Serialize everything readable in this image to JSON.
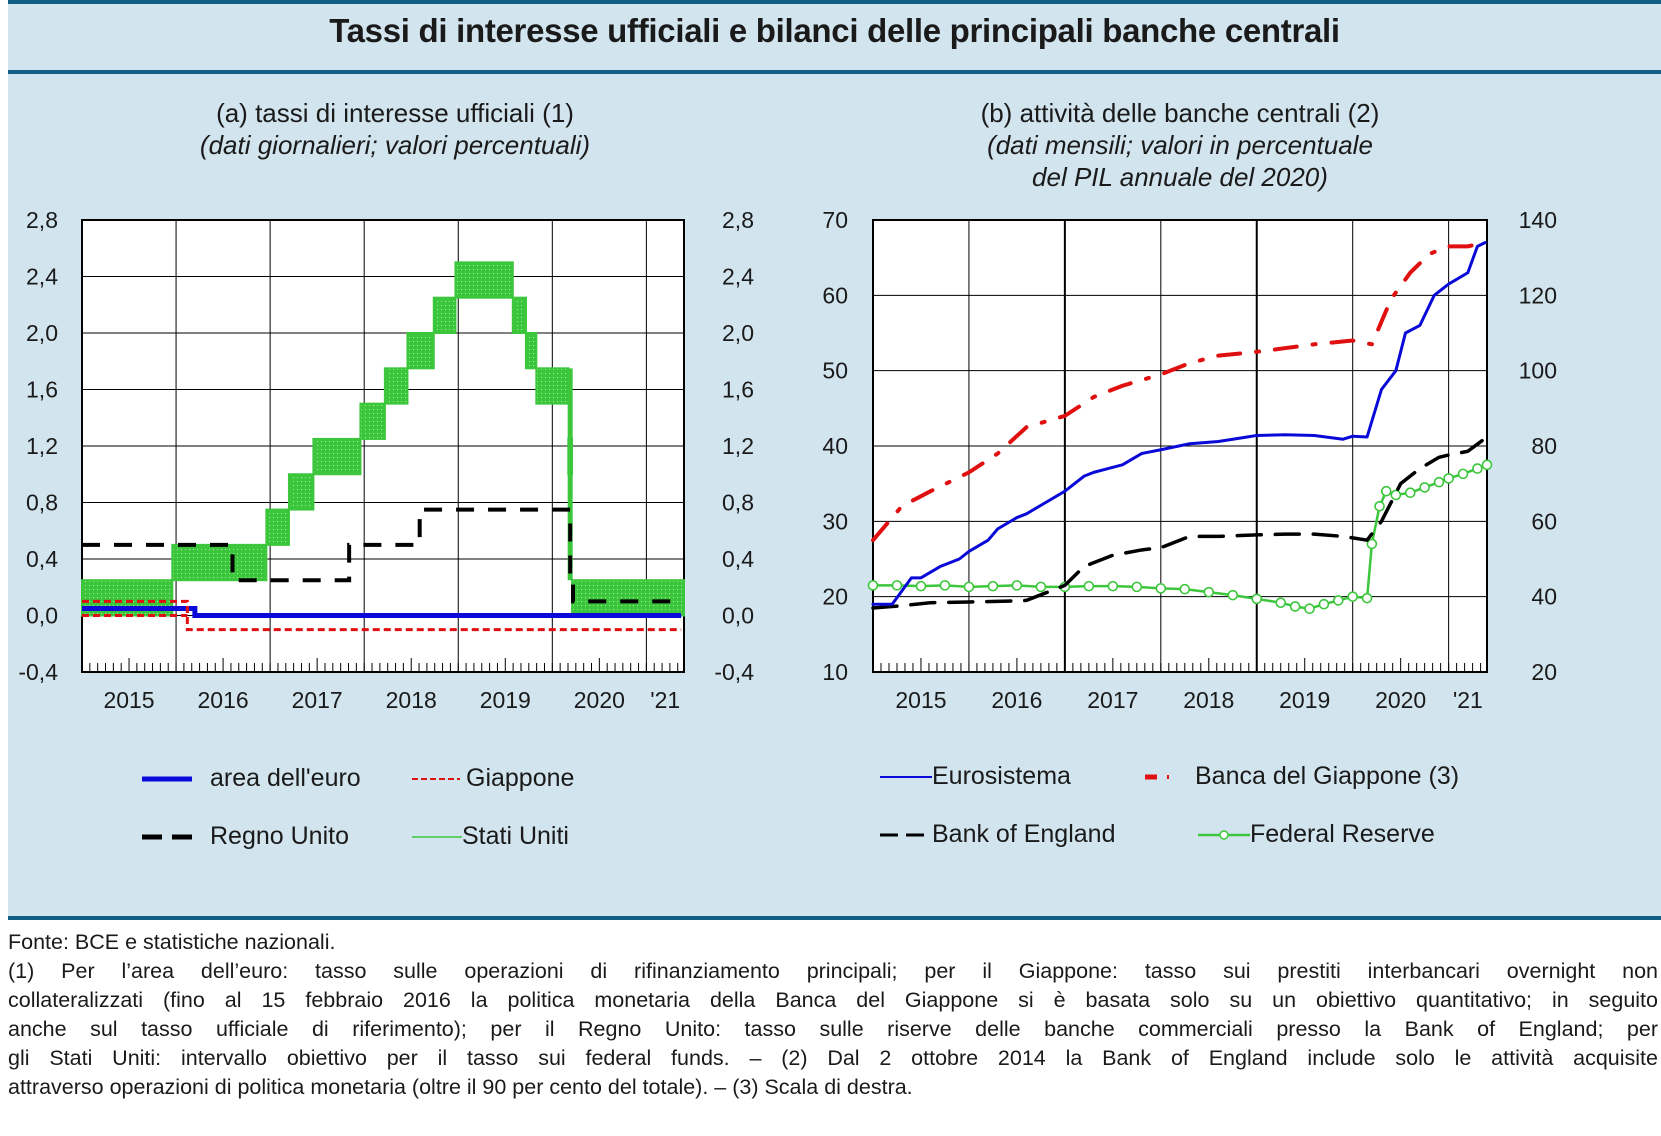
{
  "header": {
    "title": "Tassi di interesse ufficiali e bilanci delle principali banche centrali"
  },
  "colors": {
    "panel": "#d2e4ee",
    "rule": "#125f86",
    "euro": "#0a0ad8",
    "japan": "#e01010",
    "uk": "#000000",
    "us": "#3cc63c"
  },
  "chart_data": [
    {
      "id": "a",
      "type": "line",
      "title": "(a) tassi di interesse ufficiali (1)",
      "subtitle": "(dati giornalieri; valori percentuali)",
      "xlabel": "",
      "ylabel": "",
      "xlim": [
        2015.0,
        2021.4
      ],
      "ylim": [
        -0.4,
        2.8
      ],
      "grid": true,
      "legend_position": "bottom",
      "x_tick_labels": [
        "2015",
        "2016",
        "2017",
        "2018",
        "2019",
        "2020",
        "'21"
      ],
      "y_tick_labels_left": [
        "2,8",
        "2,4",
        "2,0",
        "1,6",
        "1,2",
        "0,8",
        "0,4",
        "0,0",
        "-0,4"
      ],
      "y_tick_labels_right": [
        "2,8",
        "2,4",
        "2,0",
        "1,6",
        "1,2",
        "0,8",
        "0,4",
        "0,0",
        "-0,4"
      ],
      "y_ticks": [
        2.8,
        2.4,
        2.0,
        1.6,
        1.2,
        0.8,
        0.4,
        0.0,
        -0.4
      ],
      "series": [
        {
          "name": "area dell'euro",
          "style": "solid",
          "step": [
            [
              2015.0,
              0.05
            ],
            [
              2016.2,
              0.0
            ],
            [
              2021.4,
              0.0
            ]
          ]
        },
        {
          "name": "Giappone",
          "style": "dashed-thin",
          "step": [
            [
              2015.0,
              0.1
            ],
            [
              2016.12,
              -0.1
            ],
            [
              2021.4,
              -0.1
            ]
          ],
          "step_lower": [
            [
              2015.0,
              0.0
            ],
            [
              2016.12,
              -0.1
            ]
          ]
        },
        {
          "name": "Regno Unito",
          "style": "dashed",
          "step": [
            [
              2015.0,
              0.5
            ],
            [
              2016.6,
              0.25
            ],
            [
              2017.84,
              0.5
            ],
            [
              2018.59,
              0.75
            ],
            [
              2020.19,
              0.25
            ],
            [
              2020.22,
              0.1
            ],
            [
              2021.4,
              0.1
            ]
          ]
        },
        {
          "name": "Stati Uniti",
          "style": "band",
          "band": [
            [
              2015.0,
              0.0,
              0.25
            ],
            [
              2015.96,
              0.25,
              0.5
            ],
            [
              2016.96,
              0.5,
              0.75
            ],
            [
              2017.2,
              0.75,
              1.0
            ],
            [
              2017.46,
              1.0,
              1.25
            ],
            [
              2017.96,
              1.25,
              1.5
            ],
            [
              2018.22,
              1.5,
              1.75
            ],
            [
              2018.46,
              1.75,
              2.0
            ],
            [
              2018.74,
              2.0,
              2.25
            ],
            [
              2018.97,
              2.25,
              2.5
            ],
            [
              2019.58,
              2.0,
              2.25
            ],
            [
              2019.72,
              1.75,
              2.0
            ],
            [
              2019.83,
              1.5,
              1.75
            ],
            [
              2020.17,
              1.0,
              1.25
            ],
            [
              2020.21,
              0.0,
              0.25
            ],
            [
              2021.4,
              0.0,
              0.25
            ]
          ]
        }
      ]
    },
    {
      "id": "b",
      "type": "line",
      "title": "(b) attività delle banche centrali (2)",
      "subtitle_1": "(dati mensili; valori in percentuale",
      "subtitle_2": "del PIL annuale del 2020)",
      "xlabel": "",
      "ylabel": "",
      "xlim": [
        2015.0,
        2021.4
      ],
      "ylim": [
        10,
        70
      ],
      "ylim_right": [
        20,
        140
      ],
      "grid": true,
      "legend_position": "bottom",
      "x_tick_labels": [
        "2015",
        "2016",
        "2017",
        "2018",
        "2019",
        "2020",
        "'21"
      ],
      "y_tick_labels_left": [
        "70",
        "60",
        "50",
        "40",
        "30",
        "20",
        "10"
      ],
      "y_tick_labels_right": [
        "140",
        "120",
        "100",
        "80",
        "60",
        "40",
        "20"
      ],
      "y_ticks": [
        70,
        60,
        50,
        40,
        30,
        20,
        10
      ],
      "series": [
        {
          "name": "Eurosistema",
          "axis": "left",
          "style": "solid",
          "x": [
            2015.0,
            2015.2,
            2015.4,
            2015.5,
            2015.7,
            2015.9,
            2016.0,
            2016.2,
            2016.3,
            2016.5,
            2016.6,
            2016.8,
            2017.0,
            2017.2,
            2017.3,
            2017.45,
            2017.6,
            2017.8,
            2018.0,
            2018.3,
            2018.6,
            2018.9,
            2019.0,
            2019.3,
            2019.6,
            2019.9,
            2020.0,
            2020.15,
            2020.3,
            2020.45,
            2020.55,
            2020.7,
            2020.85,
            2021.0,
            2021.2,
            2021.3,
            2021.38
          ],
          "y": [
            19,
            19,
            22.5,
            22.5,
            24,
            25,
            26,
            27.5,
            29,
            30.5,
            31,
            32.5,
            34,
            36,
            36.5,
            37,
            37.5,
            39,
            39.5,
            40.3,
            40.6,
            41.2,
            41.4,
            41.5,
            41.4,
            40.9,
            41.3,
            41.2,
            47.5,
            50,
            55,
            56,
            60,
            61.5,
            63,
            66.5,
            67
          ]
        },
        {
          "name": "Banca del Giappone (3)",
          "axis": "right",
          "style": "dashdot",
          "x": [
            2015.0,
            2015.3,
            2015.6,
            2016.0,
            2016.3,
            2016.6,
            2017.0,
            2017.3,
            2017.6,
            2018.0,
            2018.3,
            2018.6,
            2019.0,
            2019.3,
            2019.6,
            2020.0,
            2020.2,
            2020.4,
            2020.6,
            2020.8,
            2021.0,
            2021.2,
            2021.38
          ],
          "y": [
            55,
            64,
            68,
            73,
            78,
            85,
            88,
            93,
            96,
            99,
            102,
            104,
            105,
            106,
            107,
            108,
            107,
            119,
            126,
            131,
            133,
            133,
            134
          ]
        },
        {
          "name": "Bank of England",
          "axis": "left",
          "style": "dashed",
          "x": [
            2015.0,
            2015.3,
            2015.6,
            2016.0,
            2016.4,
            2016.6,
            2017.0,
            2017.2,
            2017.5,
            2017.8,
            2018.0,
            2018.3,
            2018.6,
            2019.0,
            2019.3,
            2019.6,
            2019.9,
            2020.0,
            2020.15,
            2020.3,
            2020.5,
            2020.7,
            2020.9,
            2021.0,
            2021.2,
            2021.38
          ],
          "y": [
            18.5,
            18.8,
            19.2,
            19.3,
            19.4,
            19.5,
            21.5,
            24,
            25.5,
            26.2,
            26.5,
            28,
            28,
            28.2,
            28.3,
            28.3,
            28,
            27.8,
            27.5,
            30,
            35,
            37,
            38.5,
            38.8,
            39.3,
            41
          ]
        },
        {
          "name": "Federal Reserve",
          "axis": "left",
          "style": "circles",
          "x": [
            2015.0,
            2015.25,
            2015.5,
            2015.75,
            2016.0,
            2016.25,
            2016.5,
            2016.75,
            2017.0,
            2017.25,
            2017.5,
            2017.75,
            2018.0,
            2018.25,
            2018.5,
            2018.75,
            2019.0,
            2019.25,
            2019.4,
            2019.55,
            2019.7,
            2019.85,
            2020.0,
            2020.15,
            2020.2,
            2020.28,
            2020.35,
            2020.45,
            2020.6,
            2020.75,
            2020.9,
            2021.0,
            2021.15,
            2021.3,
            2021.4
          ],
          "y": [
            21.5,
            21.5,
            21.4,
            21.5,
            21.3,
            21.4,
            21.5,
            21.3,
            21.3,
            21.4,
            21.4,
            21.3,
            21.1,
            21,
            20.6,
            20.2,
            19.7,
            19.2,
            18.7,
            18.4,
            19,
            19.5,
            20,
            19.8,
            27,
            32,
            34,
            33.5,
            33.8,
            34.5,
            35.2,
            35.7,
            36.3,
            37,
            37.5
          ]
        }
      ]
    }
  ],
  "legend_a": [
    {
      "label": "area dell'euro"
    },
    {
      "label": "Giappone"
    },
    {
      "label": "Regno Unito"
    },
    {
      "label": "Stati Uniti"
    }
  ],
  "legend_b": [
    {
      "label": "Eurosistema"
    },
    {
      "label": "Banca del Giappone (3)"
    },
    {
      "label": "Bank of England"
    },
    {
      "label": "Federal Reserve"
    }
  ],
  "notes": {
    "source": "Fonte: BCE e statistiche nazionali.",
    "lines": [
      "(1) Per l’area dell’euro: tasso sulle operazioni di rifinanziamento principali; per il Giappone: tasso sui prestiti interbancari overnight non",
      "collateralizzati (fino al 15 febbraio 2016 la politica monetaria della Banca del Giappone si è basata solo su un obiettivo quantitativo; in seguito",
      "anche sul tasso ufficiale di riferimento); per il Regno Unito: tasso sulle riserve delle banche commerciali presso la Bank of England; per",
      "gli Stati Uniti: intervallo obiettivo per il tasso sui federal funds. – (2) Dal 2 ottobre 2014 la Bank of England include solo le attività acquisite",
      "attraverso operazioni di politica monetaria (oltre il 90 per cento del totale). – (3) Scala di destra."
    ]
  }
}
